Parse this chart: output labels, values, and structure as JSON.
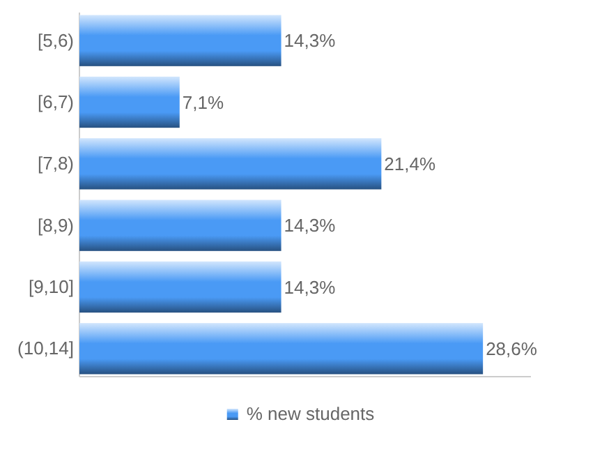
{
  "chart_data": {
    "type": "bar",
    "orientation": "horizontal",
    "categories": [
      "[5,6)",
      "[6,7)",
      "[7,8)",
      "[8,9)",
      "[9,10]",
      "(10,14]"
    ],
    "series": [
      {
        "name": "% new students",
        "color": "#4a9af5",
        "values": [
          14.3,
          7.1,
          21.4,
          14.3,
          14.3,
          28.6
        ],
        "value_labels": [
          "14,3%",
          "7,1%",
          "21,4%",
          "14,3%",
          "14,3%",
          "28,6%"
        ]
      }
    ],
    "xlim": [
      0,
      32
    ],
    "legend": "bottom",
    "tick_labels": "y"
  }
}
